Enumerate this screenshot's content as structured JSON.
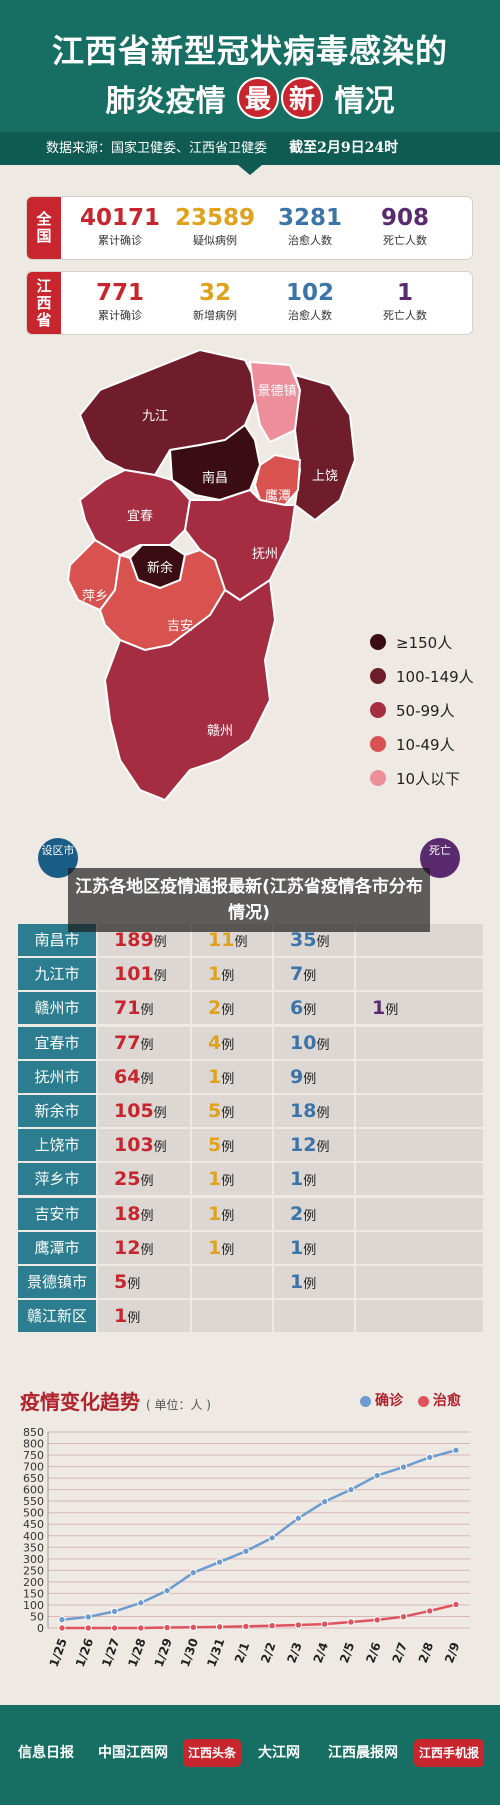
{
  "header": {
    "title_line1": "江西省新型冠状病毒感染的",
    "title_line2_a": "肺炎疫情",
    "title_line2_zui": "最",
    "title_line2_xin": "新",
    "title_line2_b": "情况",
    "source": "数据来源：国家卫健委、江西省卫健委",
    "cutoff": "截至2月9日24时"
  },
  "national": {
    "tag": "全国",
    "stats": [
      {
        "value": "40171",
        "label": "累计确诊",
        "color": "#c8262e"
      },
      {
        "value": "23589",
        "label": "疑似病例",
        "color": "#e0a21c"
      },
      {
        "value": "3281",
        "label": "治愈人数",
        "color": "#3d74a8"
      },
      {
        "value": "908",
        "label": "死亡人数",
        "color": "#5a2a6e"
      }
    ]
  },
  "jiangxi": {
    "tag": "江西省",
    "stats": [
      {
        "value": "771",
        "label": "累计确诊",
        "color": "#c8262e"
      },
      {
        "value": "32",
        "label": "新增病例",
        "color": "#e0a21c"
      },
      {
        "value": "102",
        "label": "治愈人数",
        "color": "#3d74a8"
      },
      {
        "value": "1",
        "label": "死亡人数",
        "color": "#5a2a6e"
      }
    ]
  },
  "map": {
    "regions": [
      "九江",
      "景德镇",
      "南昌",
      "上饶",
      "鹰潭",
      "宜春",
      "新余",
      "抚州",
      "萍乡",
      "吉安",
      "赣州"
    ]
  },
  "legend": [
    {
      "label": "≥150人",
      "color": "#3a0d14"
    },
    {
      "label": "100-149人",
      "color": "#6f1c2b"
    },
    {
      "label": "50-99人",
      "color": "#a52d42"
    },
    {
      "label": "10-49人",
      "color": "#d8524f"
    },
    {
      "label": "10人以下",
      "color": "#ec8f9b"
    }
  ],
  "table": {
    "head_left": "设区市",
    "head_right": "死亡",
    "overlay_title": "江苏各地区疫情通报最新(江苏省疫情各市分布情况)",
    "unit": "例",
    "rows": [
      {
        "city": "南昌市",
        "confirmed": "189",
        "new": "11",
        "cured": "35",
        "death": ""
      },
      {
        "city": "九江市",
        "confirmed": "101",
        "new": "1",
        "cured": "7",
        "death": ""
      },
      {
        "city": "赣州市",
        "confirmed": "71",
        "new": "2",
        "cured": "6",
        "death": "1"
      },
      {
        "city": "宜春市",
        "confirmed": "77",
        "new": "4",
        "cured": "10",
        "death": ""
      },
      {
        "city": "抚州市",
        "confirmed": "64",
        "new": "1",
        "cured": "9",
        "death": ""
      },
      {
        "city": "新余市",
        "confirmed": "105",
        "new": "5",
        "cured": "18",
        "death": ""
      },
      {
        "city": "上饶市",
        "confirmed": "103",
        "new": "5",
        "cured": "12",
        "death": ""
      },
      {
        "city": "萍乡市",
        "confirmed": "25",
        "new": "1",
        "cured": "1",
        "death": ""
      },
      {
        "city": "吉安市",
        "confirmed": "18",
        "new": "1",
        "cured": "2",
        "death": ""
      },
      {
        "city": "鹰潭市",
        "confirmed": "12",
        "new": "1",
        "cured": "1",
        "death": ""
      },
      {
        "city": "景德镇市",
        "confirmed": "5",
        "new": "",
        "cured": "1",
        "death": ""
      },
      {
        "city": "赣江新区",
        "confirmed": "1",
        "new": "",
        "cured": "",
        "death": ""
      }
    ]
  },
  "trend": {
    "title": "疫情变化趋势",
    "unit": "( 单位：人 )"
  },
  "chart_data": {
    "type": "line",
    "x": [
      "1/25",
      "1/26",
      "1/27",
      "1/28",
      "1/29",
      "1/30",
      "1/31",
      "2/1",
      "2/2",
      "2/3",
      "2/4",
      "2/5",
      "2/6",
      "2/7",
      "2/8",
      "2/9"
    ],
    "series": [
      {
        "name": "确诊",
        "color": "#6d9bd0",
        "values": [
          36,
          48,
          72,
          109,
          162,
          240,
          286,
          333,
          391,
          476,
          548,
          600,
          661,
          698,
          740,
          771
        ]
      },
      {
        "name": "治愈",
        "color": "#e0525e",
        "values": [
          0,
          0,
          0,
          0,
          2,
          3,
          5,
          7,
          10,
          13,
          17,
          26,
          35,
          49,
          74,
          102
        ]
      }
    ],
    "yticks": [
      0,
      50,
      100,
      150,
      200,
      250,
      300,
      350,
      400,
      450,
      500,
      550,
      600,
      650,
      700,
      750,
      800,
      850
    ],
    "ylim": [
      0,
      850
    ],
    "grid": true,
    "legend": "top-right"
  },
  "footer": {
    "logos": [
      "信息日报",
      "中国江西网",
      "江西头条",
      "大江网",
      "江西晨报网",
      "江西手机报"
    ]
  }
}
